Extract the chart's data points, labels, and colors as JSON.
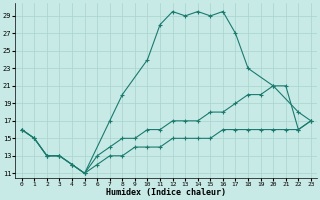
{
  "bg_color": "#c8eae6",
  "grid_color": "#a8d4cf",
  "line_color": "#1a7a6e",
  "xlabel": "Humidex (Indice chaleur)",
  "xlim": [
    -0.5,
    23.5
  ],
  "ylim": [
    10.5,
    30.5
  ],
  "xticks": [
    0,
    1,
    2,
    3,
    4,
    5,
    6,
    7,
    8,
    9,
    10,
    11,
    12,
    13,
    14,
    15,
    16,
    17,
    18,
    19,
    20,
    21,
    22,
    23
  ],
  "yticks": [
    11,
    13,
    15,
    17,
    19,
    21,
    23,
    25,
    27,
    29
  ],
  "series": [
    {
      "x": [
        0,
        1,
        2,
        3,
        4,
        5,
        7,
        8,
        10,
        11,
        12,
        13,
        14,
        15,
        16,
        17,
        18,
        20,
        22,
        23
      ],
      "y": [
        16,
        15,
        13,
        13,
        12,
        11,
        17,
        20,
        24,
        28,
        29.5,
        29,
        29.5,
        29,
        29.5,
        27,
        23,
        21,
        18,
        17
      ]
    },
    {
      "x": [
        0,
        1,
        2,
        3,
        4,
        5,
        6,
        7,
        8,
        9,
        10,
        11,
        12,
        13,
        14,
        15,
        16,
        17,
        18,
        19,
        20,
        21,
        22,
        23
      ],
      "y": [
        16,
        15,
        13,
        13,
        12,
        11,
        13,
        14,
        15,
        15,
        16,
        16,
        17,
        17,
        17,
        18,
        18,
        19,
        20,
        20,
        21,
        21,
        16,
        17
      ]
    },
    {
      "x": [
        0,
        1,
        2,
        3,
        4,
        5,
        6,
        7,
        8,
        9,
        10,
        11,
        12,
        13,
        14,
        15,
        16,
        17,
        18,
        19,
        20,
        21,
        22,
        23
      ],
      "y": [
        16,
        15,
        13,
        13,
        12,
        11,
        12,
        13,
        13,
        14,
        14,
        14,
        15,
        15,
        15,
        15,
        16,
        16,
        16,
        16,
        16,
        16,
        16,
        17
      ]
    }
  ]
}
